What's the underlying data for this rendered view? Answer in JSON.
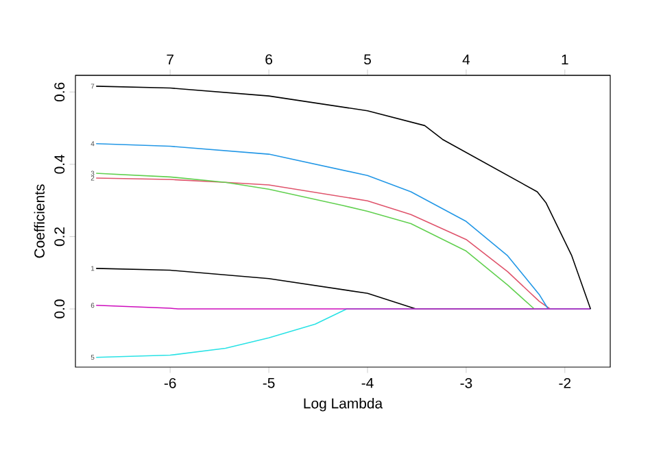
{
  "chart_data": {
    "type": "line",
    "xlabel": "Log Lambda",
    "ylabel": "Coefficients",
    "xlim": [
      -6.96,
      -1.54
    ],
    "xticks": [
      -6,
      -5,
      -4,
      -3,
      -2
    ],
    "ylim": [
      -0.161,
      0.646
    ],
    "yticks": [
      {
        "value": 0,
        "label": "0.0"
      },
      0.2,
      0.4,
      0.6
    ],
    "annotations": [
      "7",
      "6",
      "5",
      "4",
      "1"
    ],
    "series": [
      {
        "name": "1",
        "color": "#000000",
        "x": [
          -6.75,
          -6,
          -5,
          -4,
          -3.51,
          -1.74
        ],
        "values": [
          0.112,
          0.107,
          0.084,
          0.043,
          0,
          0
        ]
      },
      {
        "name": "2",
        "color": "#DF536B",
        "x": [
          -6.75,
          -6,
          -5.44,
          -5,
          -4,
          -3.56,
          -3,
          -2.58,
          -2.26,
          -2.15,
          -1.74
        ],
        "values": [
          0.362,
          0.358,
          0.35,
          0.343,
          0.299,
          0.261,
          0.192,
          0.103,
          0.021,
          0,
          0
        ]
      },
      {
        "name": "3",
        "color": "#61D04F",
        "x": [
          -6.75,
          -6,
          -5.44,
          -5,
          -4.25,
          -4,
          -3.56,
          -3,
          -2.58,
          -2.31,
          -1.74
        ],
        "values": [
          0.375,
          0.365,
          0.35,
          0.331,
          0.286,
          0.27,
          0.236,
          0.16,
          0.066,
          0,
          0
        ]
      },
      {
        "name": "4",
        "color": "#2297E6",
        "x": [
          -6.75,
          -6,
          -5,
          -4,
          -3.56,
          -3,
          -2.58,
          -2.26,
          -2.17,
          -1.74
        ],
        "values": [
          0.457,
          0.45,
          0.428,
          0.369,
          0.324,
          0.242,
          0.147,
          0.04,
          0,
          0
        ]
      },
      {
        "name": "5",
        "color": "#28E2E5",
        "x": [
          -6.75,
          -6,
          -5.44,
          -5,
          -4.53,
          -4.21,
          -1.74
        ],
        "values": [
          -0.134,
          -0.128,
          -0.109,
          -0.08,
          -0.042,
          0,
          0
        ]
      },
      {
        "name": "6",
        "color": "#CD0BBC",
        "x": [
          -6.75,
          -6,
          -5.92,
          -1.74
        ],
        "values": [
          0.01,
          0.002,
          0,
          0
        ]
      },
      {
        "name": "7",
        "color": "#000000",
        "x": [
          -6.75,
          -6,
          -5,
          -4,
          -3.42,
          -3.24,
          -2.28,
          -2.19,
          -1.93,
          -1.74
        ],
        "values": [
          0.616,
          0.611,
          0.589,
          0.548,
          0.507,
          0.469,
          0.324,
          0.293,
          0.147,
          0
        ]
      }
    ]
  }
}
